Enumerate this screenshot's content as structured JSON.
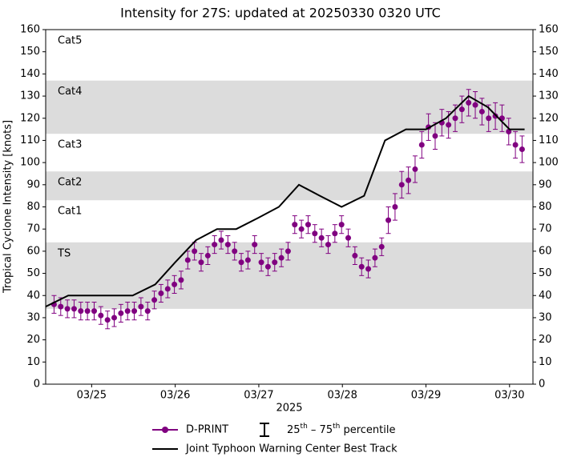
{
  "chart_data": {
    "type": "line",
    "title": "Intensity for 27S: updated at 20250330 0320 UTC",
    "ylabel": "Tropical Cyclone Intensity [knots]",
    "xlabel": "2025",
    "xlim": [
      24.45,
      30.28
    ],
    "ylim": [
      0,
      160
    ],
    "xticks": [
      {
        "value": 25,
        "label": "03/25"
      },
      {
        "value": 26,
        "label": "03/26"
      },
      {
        "value": 27,
        "label": "03/27"
      },
      {
        "value": 28,
        "label": "03/28"
      },
      {
        "value": 29,
        "label": "03/29"
      },
      {
        "value": 30,
        "label": "03/30"
      }
    ],
    "yticks": [
      0,
      10,
      20,
      30,
      40,
      50,
      60,
      70,
      80,
      90,
      100,
      110,
      120,
      130,
      140,
      150,
      160
    ],
    "right_axis": true,
    "grid": false,
    "band_color": "#dcdcdc",
    "bands": [
      {
        "label": "TS",
        "range": [
          34,
          64
        ],
        "shaded": true
      },
      {
        "label": "Cat1",
        "range": [
          64,
          83
        ],
        "shaded": false
      },
      {
        "label": "Cat2",
        "range": [
          83,
          96
        ],
        "shaded": true
      },
      {
        "label": "Cat3",
        "range": [
          96,
          113
        ],
        "shaded": false
      },
      {
        "label": "Cat4",
        "range": [
          113,
          137
        ],
        "shaded": true
      },
      {
        "label": "Cat5",
        "range": [
          137,
          160
        ],
        "shaded": false
      }
    ],
    "series": [
      {
        "name": "D-PRINT",
        "color": "#800080",
        "x": [
          24.55,
          24.63,
          24.71,
          24.79,
          24.87,
          24.95,
          25.03,
          25.11,
          25.19,
          25.27,
          25.35,
          25.43,
          25.51,
          25.59,
          25.67,
          25.75,
          25.83,
          25.91,
          25.99,
          26.07,
          26.15,
          26.23,
          26.31,
          26.39,
          26.47,
          26.55,
          26.63,
          26.71,
          26.79,
          26.87,
          26.95,
          27.03,
          27.11,
          27.19,
          27.27,
          27.35,
          27.43,
          27.51,
          27.59,
          27.67,
          27.75,
          27.83,
          27.91,
          27.99,
          28.07,
          28.15,
          28.23,
          28.31,
          28.39,
          28.47,
          28.55,
          28.63,
          28.71,
          28.79,
          28.87,
          28.95,
          29.03,
          29.11,
          29.19,
          29.27,
          29.35,
          29.43,
          29.51,
          29.59,
          29.67,
          29.75,
          29.83,
          29.91,
          29.99,
          30.07,
          30.15
        ],
        "values": [
          36,
          35,
          34,
          34,
          33,
          33,
          33,
          31,
          29,
          30,
          32,
          33,
          33,
          35,
          33,
          38,
          41,
          43,
          45,
          47,
          56,
          60,
          55,
          58,
          63,
          65,
          63,
          60,
          55,
          56,
          63,
          55,
          53,
          55,
          57,
          60,
          72,
          70,
          72,
          68,
          66,
          63,
          68,
          72,
          66,
          58,
          53,
          52,
          57,
          62,
          74,
          80,
          90,
          92,
          97,
          108,
          116,
          112,
          118,
          117,
          120,
          124,
          127,
          126,
          123,
          120,
          121,
          120,
          114,
          108,
          106
        ],
        "p25": [
          32,
          31,
          30,
          30,
          29,
          29,
          29,
          27,
          25,
          26,
          28,
          29,
          29,
          31,
          29,
          34,
          37,
          39,
          41,
          43,
          52,
          56,
          51,
          54,
          59,
          61,
          59,
          56,
          51,
          52,
          59,
          51,
          49,
          51,
          53,
          56,
          68,
          66,
          68,
          64,
          62,
          59,
          64,
          68,
          62,
          54,
          49,
          48,
          53,
          58,
          68,
          74,
          84,
          86,
          91,
          102,
          110,
          106,
          112,
          111,
          114,
          118,
          121,
          120,
          117,
          114,
          115,
          114,
          108,
          102,
          100
        ],
        "p75": [
          40,
          39,
          38,
          38,
          37,
          37,
          37,
          35,
          33,
          34,
          36,
          37,
          37,
          39,
          37,
          42,
          45,
          47,
          49,
          51,
          60,
          64,
          59,
          62,
          67,
          69,
          67,
          64,
          59,
          60,
          67,
          59,
          57,
          59,
          61,
          64,
          76,
          74,
          76,
          72,
          70,
          67,
          72,
          76,
          70,
          62,
          57,
          56,
          61,
          66,
          80,
          86,
          96,
          98,
          103,
          114,
          122,
          118,
          124,
          123,
          126,
          130,
          133,
          132,
          129,
          126,
          127,
          126,
          120,
          114,
          112
        ]
      },
      {
        "name": "Joint Typhoon Warning Center Best Track",
        "color": "#000000",
        "x": [
          24.45,
          24.72,
          25.49,
          25.76,
          26.0,
          26.25,
          26.5,
          26.73,
          26.99,
          27.24,
          27.48,
          27.73,
          27.99,
          28.26,
          28.51,
          28.76,
          29.0,
          29.24,
          29.51,
          29.74,
          30.0,
          30.18
        ],
        "values": [
          35,
          40,
          40,
          45,
          55,
          65,
          70,
          70,
          75,
          80,
          90,
          85,
          80,
          85,
          110,
          115,
          115,
          120,
          130,
          125,
          115,
          115
        ]
      }
    ],
    "errorbar_legend": [
      {
        "text": "25"
      },
      {
        "text": "th",
        "sup": true
      },
      {
        "text": " – 75"
      },
      {
        "text": "th",
        "sup": true
      },
      {
        "text": " percentile"
      }
    ]
  }
}
